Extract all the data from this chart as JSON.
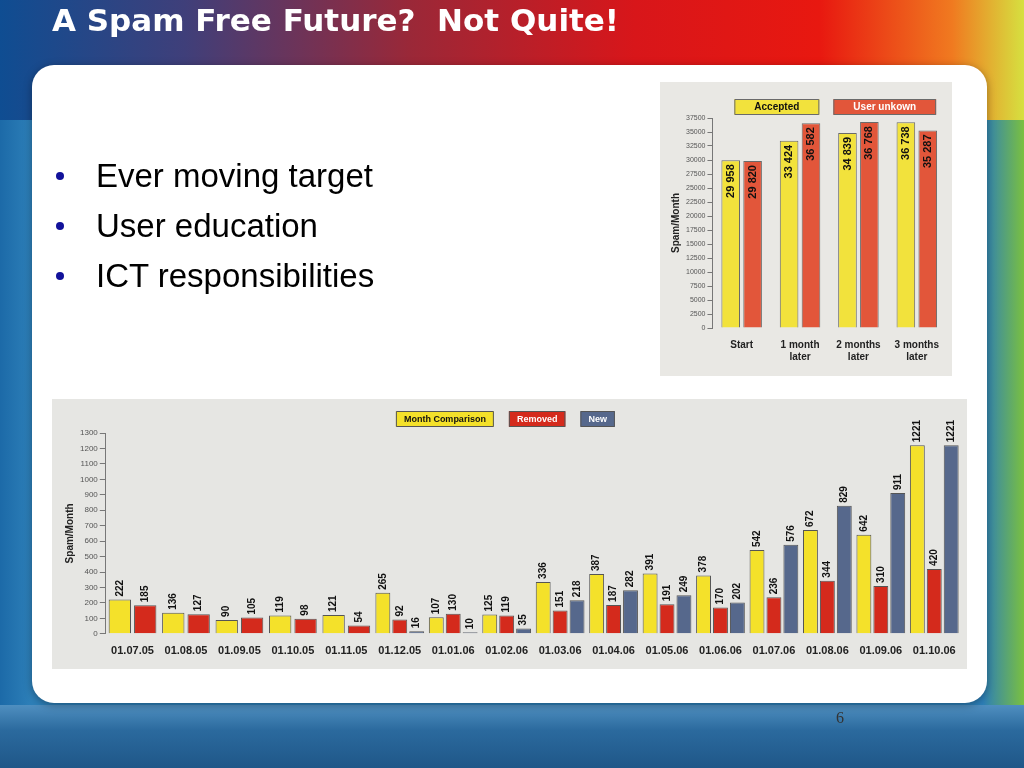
{
  "chart_data": [
    {
      "type": "other",
      "title": "A Spam Free Future?  Not Quite!",
      "annotations": [
        "Ever moving target",
        "User education",
        "ICT responsibilities"
      ]
    },
    {
      "type": "bar",
      "categories": [
        "Start",
        "1 month later",
        "2 months later",
        "3 months later"
      ],
      "ylabel": "Spam/Month",
      "ylim": [
        0,
        37500
      ],
      "yticks": [
        0,
        2500,
        5000,
        7500,
        10000,
        12500,
        15000,
        17500,
        20000,
        22500,
        25000,
        27500,
        30000,
        32500,
        35000,
        37500
      ],
      "legend": "top",
      "series": [
        {
          "name": "Accepted",
          "color": "#f2e23c",
          "values": [
            29958,
            33424,
            34839,
            36738
          ],
          "value_labels": [
            "29 958",
            "33 424",
            "34 839",
            "36 738"
          ]
        },
        {
          "name": "User unkown",
          "color": "#e2563a",
          "values": [
            29820,
            36582,
            36768,
            35287
          ],
          "value_labels": [
            "29 820",
            "36 582",
            "36 768",
            "35 287"
          ]
        }
      ]
    },
    {
      "type": "bar",
      "categories": [
        "01.07.05",
        "01.08.05",
        "01.09.05",
        "01.10.05",
        "01.11.05",
        "01.12.05",
        "01.01.06",
        "01.02.06",
        "01.03.06",
        "01.04.06",
        "01.05.06",
        "01.06.06",
        "01.07.06",
        "01.08.06",
        "01.09.06",
        "01.10.06"
      ],
      "ylabel": "Spam/Month",
      "ylim": [
        0,
        1300
      ],
      "yticks": [
        0,
        100,
        200,
        300,
        400,
        500,
        600,
        700,
        800,
        900,
        1000,
        1100,
        1200,
        1300
      ],
      "legend": "top",
      "data_labels": true,
      "series": [
        {
          "name": "Month Comparison",
          "color": "#f4e12a",
          "values": [
            222,
            136,
            90,
            119,
            121,
            265,
            107,
            125,
            336,
            387,
            391,
            378,
            542,
            672,
            642,
            1221
          ]
        },
        {
          "name": "Removed",
          "color": "#d42a1c",
          "values": [
            185,
            127,
            105,
            98,
            54,
            92,
            130,
            119,
            151,
            187,
            191,
            170,
            236,
            344,
            310,
            420
          ]
        },
        {
          "name": "New",
          "color": "#56688c",
          "values": [
            null,
            null,
            null,
            null,
            null,
            16,
            10,
            35,
            218,
            282,
            249,
            202,
            576,
            829,
            911,
            1221
          ]
        }
      ],
      "annotations": [
        "6"
      ]
    }
  ]
}
